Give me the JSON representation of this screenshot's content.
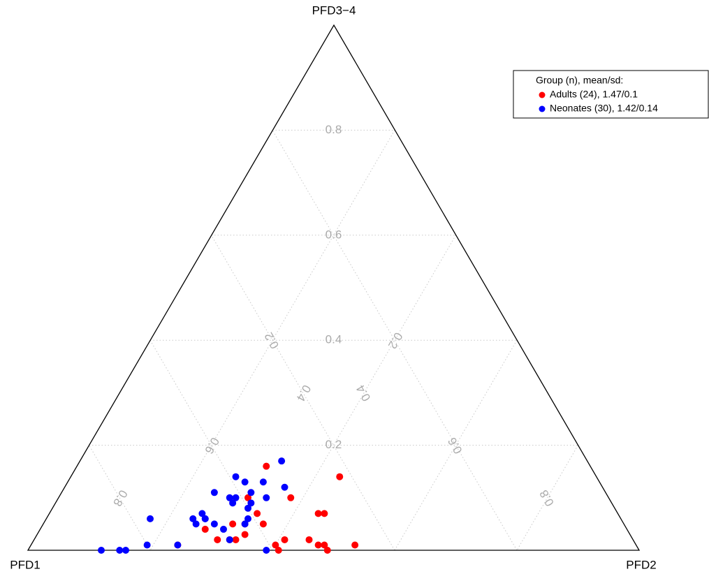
{
  "chart_data": {
    "type": "ternary",
    "axes": [
      {
        "label": "PFD1",
        "ticks": [
          0.2,
          0.4,
          0.6,
          0.8
        ]
      },
      {
        "label": "PFD2",
        "ticks": [
          0.2,
          0.4,
          0.6,
          0.8
        ]
      },
      {
        "label": "PFD3−4",
        "ticks": [
          0.2,
          0.4,
          0.6,
          0.8
        ]
      }
    ],
    "grid": true,
    "legend_title": "Group (n), mean/sd:",
    "legend_position": "top-right",
    "series": [
      {
        "name": "Adults (24), 1.47/0.1",
        "color": "#ff0000",
        "values": [
          [
            0.53,
            0.31,
            0.16
          ],
          [
            0.42,
            0.44,
            0.14
          ],
          [
            0.52,
            0.38,
            0.1
          ],
          [
            0.59,
            0.31,
            0.1
          ],
          [
            0.59,
            0.34,
            0.07
          ],
          [
            0.49,
            0.44,
            0.07
          ],
          [
            0.48,
            0.45,
            0.07
          ],
          [
            0.64,
            0.31,
            0.05
          ],
          [
            0.62,
            0.33,
            0.05
          ],
          [
            0.59,
            0.36,
            0.05
          ],
          [
            0.69,
            0.27,
            0.04
          ],
          [
            0.63,
            0.34,
            0.03
          ],
          [
            0.65,
            0.33,
            0.02
          ],
          [
            0.68,
            0.3,
            0.02
          ],
          [
            0.66,
            0.32,
            0.02
          ],
          [
            0.75,
            0.24,
            0.01
          ],
          [
            0.57,
            0.41,
            0.02
          ],
          [
            0.59,
            0.4,
            0.01
          ],
          [
            0.53,
            0.45,
            0.02
          ],
          [
            0.59,
            0.41,
            0
          ],
          [
            0.52,
            0.47,
            0.01
          ],
          [
            0.51,
            0.49,
            0
          ],
          [
            0.46,
            0.53,
            0.01
          ],
          [
            0.51,
            0.48,
            0.01
          ]
        ]
      },
      {
        "name": "Neonates (30), 1.42/0.14",
        "color": "#0000ff",
        "values": [
          [
            0.5,
            0.33,
            0.17
          ],
          [
            0.59,
            0.27,
            0.14
          ],
          [
            0.58,
            0.29,
            0.13
          ],
          [
            0.55,
            0.32,
            0.13
          ],
          [
            0.52,
            0.36,
            0.12
          ],
          [
            0.58,
            0.31,
            0.11
          ],
          [
            0.61,
            0.29,
            0.1
          ],
          [
            0.56,
            0.34,
            0.1
          ],
          [
            0.64,
            0.25,
            0.11
          ],
          [
            0.62,
            0.29,
            0.09
          ],
          [
            0.62,
            0.28,
            0.1
          ],
          [
            0.59,
            0.32,
            0.09
          ],
          [
            0.6,
            0.32,
            0.08
          ],
          [
            0.68,
            0.25,
            0.07
          ],
          [
            0.68,
            0.26,
            0.06
          ],
          [
            0.7,
            0.24,
            0.06
          ],
          [
            0.7,
            0.25,
            0.05
          ],
          [
            0.67,
            0.28,
            0.05
          ],
          [
            0.62,
            0.33,
            0.05
          ],
          [
            0.77,
            0.17,
            0.06
          ],
          [
            0.66,
            0.3,
            0.04
          ],
          [
            0.66,
            0.32,
            0.02
          ],
          [
            0.75,
            0.24,
            0.01
          ],
          [
            0.8,
            0.19,
            0.01
          ],
          [
            0.84,
            0.16,
            0
          ],
          [
            0.85,
            0.15,
            0
          ],
          [
            0.88,
            0.12,
            0
          ],
          [
            0.61,
            0.39,
            0
          ],
          [
            0.68,
            0.26,
            0.06
          ],
          [
            0.61,
            0.33,
            0.06
          ]
        ]
      }
    ]
  }
}
